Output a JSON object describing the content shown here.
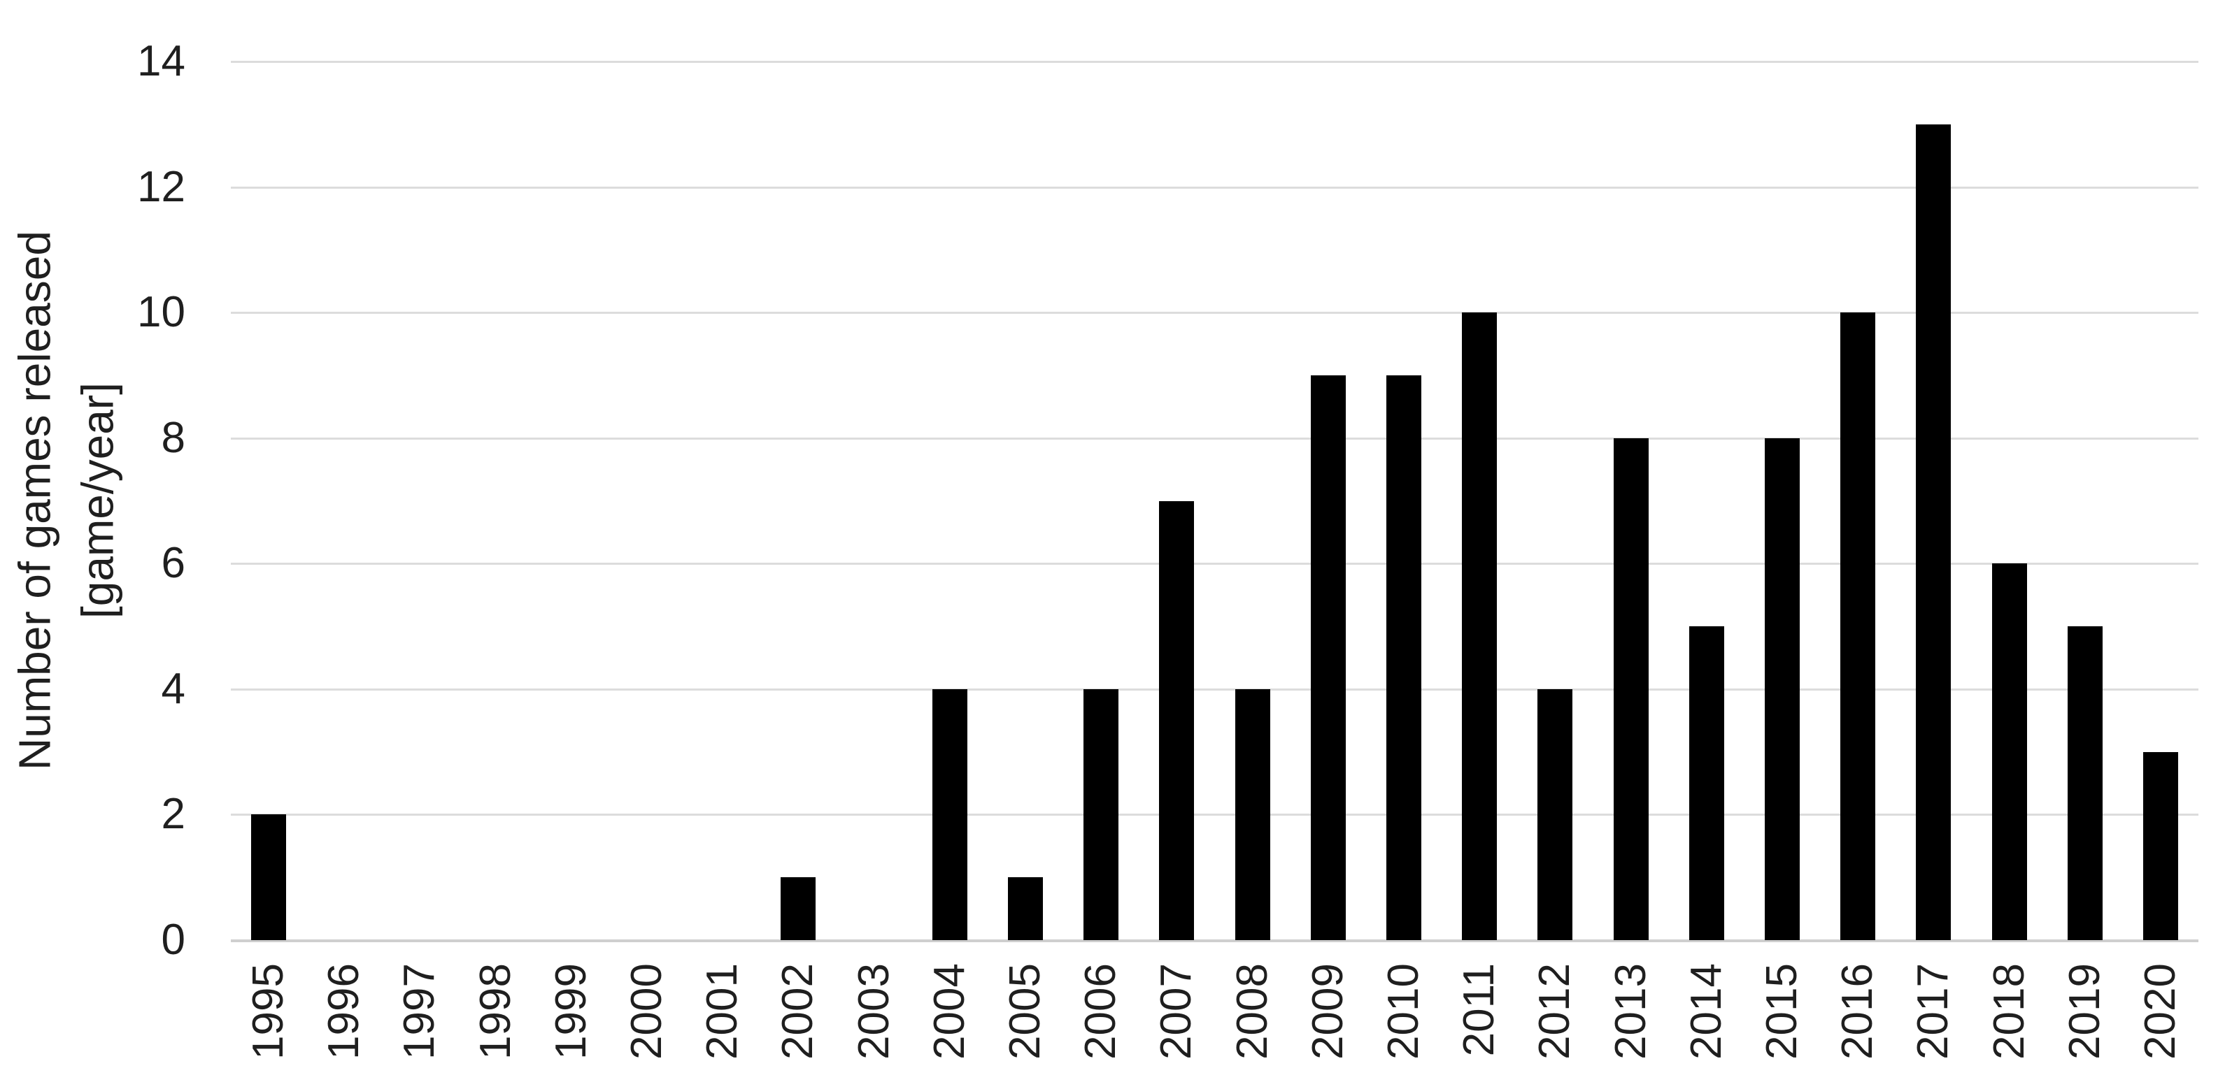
{
  "chart_data": {
    "type": "bar",
    "title": "",
    "categories": [
      "1995",
      "1996",
      "1997",
      "1998",
      "1999",
      "2000",
      "2001",
      "2002",
      "2003",
      "2004",
      "2005",
      "2006",
      "2007",
      "2008",
      "2009",
      "2010",
      "2011",
      "2012",
      "2013",
      "2014",
      "2015",
      "2016",
      "2017",
      "2018",
      "2019",
      "2020"
    ],
    "values": [
      2,
      0,
      0,
      0,
      0,
      0,
      0,
      1,
      0,
      4,
      1,
      4,
      7,
      4,
      9,
      9,
      10,
      4,
      8,
      5,
      8,
      10,
      13,
      6,
      5,
      3
    ],
    "xlabel": "",
    "ylabel_line1": "Number of games released",
    "ylabel_line2": "[game/year]",
    "yticks": [
      0,
      2,
      4,
      6,
      8,
      10,
      12,
      14
    ],
    "ylim": [
      0,
      14
    ],
    "grid": "horizontal",
    "legend": "none",
    "bar_color": "#000000",
    "gridline_color": "#dcdcdc",
    "axis_line_color": "#cfcfcf",
    "text_color": "#1f1f1f",
    "background_color": "#ffffff"
  }
}
